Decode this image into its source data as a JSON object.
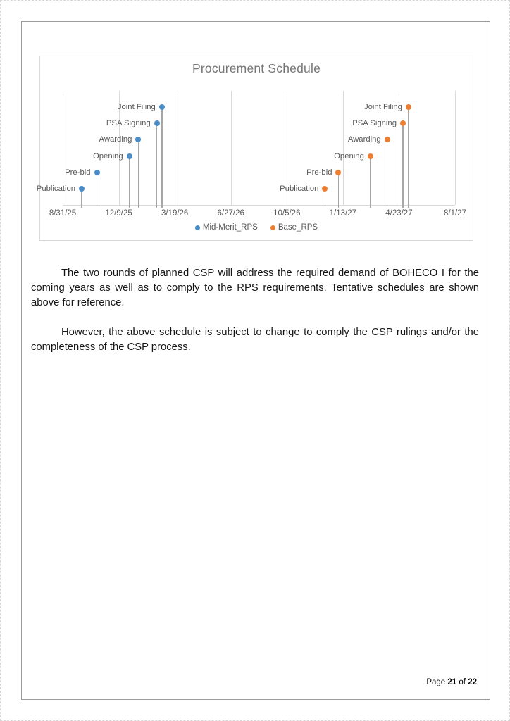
{
  "page": {
    "paragraphs": [
      "The two rounds of planned CSP will address the required demand of BOHECO I for the coming years as well as to comply to the RPS requirements. Tentative schedules are shown above for reference.",
      "However, the above schedule is subject to change to comply the CSP rulings and/or the completeness of the CSP process."
    ],
    "footer": {
      "page_label": "Page",
      "page_number": "21",
      "of_label": "of",
      "total_pages": "22"
    }
  },
  "chart_data": {
    "type": "scatter",
    "subtype": "lollipop-timeline",
    "title": "Procurement Schedule",
    "x_ticks": [
      "8/31/25",
      "12/9/25",
      "3/19/26",
      "6/27/26",
      "10/5/26",
      "1/13/27",
      "4/23/27",
      "8/1/27"
    ],
    "x_tick_interval_days": 100,
    "ylim": [
      0,
      7
    ],
    "grid": true,
    "legend_position": "bottom",
    "colors": {
      "mid_merit": "#4A8CC7",
      "base": "#ED7D31",
      "stem": "#a6a6a6",
      "grid": "#d9d9d9",
      "label_text": "#595959"
    },
    "series": [
      {
        "name": "Mid-Merit_RPS",
        "color": "#4A8CC7",
        "points": [
          {
            "label": "Publication",
            "date": "10/4/25",
            "level": 1
          },
          {
            "label": "Pre-bid",
            "date": "10/31/25",
            "level": 2
          },
          {
            "label": "Opening",
            "date": "12/28/25",
            "level": 3
          },
          {
            "label": "Awarding",
            "date": "1/13/26",
            "level": 4
          },
          {
            "label": "PSA Signing",
            "date": "2/15/26",
            "level": 5
          },
          {
            "label": "Joint Filing",
            "date": "2/24/26",
            "level": 6
          }
        ]
      },
      {
        "name": "Base_RPS",
        "color": "#ED7D31",
        "points": [
          {
            "label": "Publication",
            "date": "12/12/26",
            "level": 1
          },
          {
            "label": "Pre-bid",
            "date": "1/5/27",
            "level": 2
          },
          {
            "label": "Opening",
            "date": "3/3/27",
            "level": 3
          },
          {
            "label": "Awarding",
            "date": "4/2/27",
            "level": 4
          },
          {
            "label": "PSA Signing",
            "date": "4/30/27",
            "level": 5
          },
          {
            "label": "Joint Filing",
            "date": "5/10/27",
            "level": 6
          }
        ]
      }
    ]
  }
}
